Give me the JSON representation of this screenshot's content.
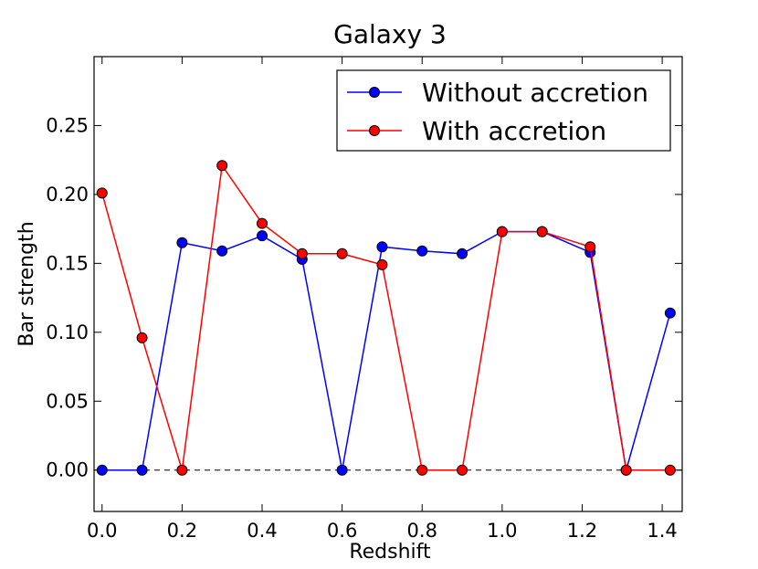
{
  "chart_data": {
    "type": "line",
    "title": "Galaxy 3",
    "xlabel": "Redshift",
    "ylabel": "Bar strength",
    "xlim": [
      -0.02,
      1.45
    ],
    "ylim": [
      -0.03,
      0.3
    ],
    "xticks": [
      "0.0",
      "0.2",
      "0.4",
      "0.6",
      "0.8",
      "1.0",
      "1.2",
      "1.4"
    ],
    "yticks": [
      "0.00",
      "0.05",
      "0.10",
      "0.15",
      "0.20",
      "0.25"
    ],
    "legend_position": "top-right",
    "reference_line": {
      "y": 0.0,
      "style": "dashed"
    },
    "series": [
      {
        "name": "Without accretion",
        "color": "#0000ff",
        "marker_color": "#0000ff",
        "x": [
          0.0,
          0.1,
          0.2,
          0.3,
          0.4,
          0.5,
          0.6,
          0.7,
          0.8,
          0.9,
          1.0,
          1.1,
          1.22,
          1.31,
          1.42
        ],
        "y": [
          0.0,
          0.0,
          0.165,
          0.159,
          0.17,
          0.153,
          0.0,
          0.162,
          0.159,
          0.157,
          0.173,
          0.173,
          0.158,
          0.0,
          0.114
        ]
      },
      {
        "name": "With accretion",
        "color": "#ff0000",
        "marker_color": "#ff0000",
        "x": [
          0.0,
          0.1,
          0.2,
          0.3,
          0.4,
          0.5,
          0.6,
          0.7,
          0.8,
          0.9,
          1.0,
          1.1,
          1.22,
          1.31,
          1.42
        ],
        "y": [
          0.201,
          0.096,
          0.0,
          0.221,
          0.179,
          0.157,
          0.157,
          0.149,
          0.0,
          0.0,
          0.173,
          0.173,
          0.162,
          0.0,
          0.0
        ]
      }
    ]
  }
}
